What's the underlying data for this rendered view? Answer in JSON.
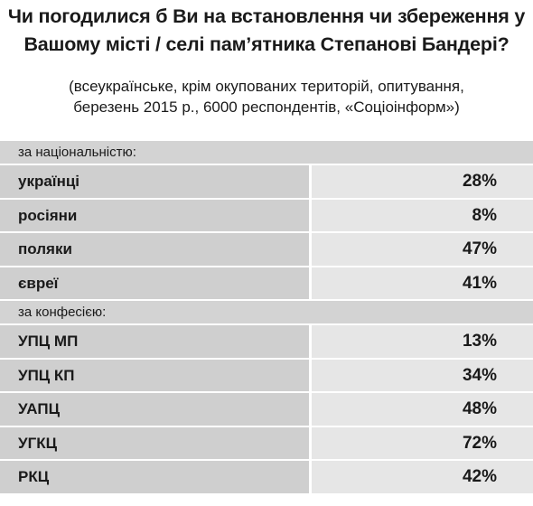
{
  "chart_data": {
    "type": "table",
    "title": "Чи погодилися б Ви на встановлення чи збереження у Вашому місті / селі пам’ятника Степанові Бандері?",
    "subtitle_line1": "(всеукраїнське, крім окупованих територій, опитування,",
    "subtitle_line2": "березень 2015 р., 6000 респондентів, «Соціоінформ»)",
    "groups": [
      {
        "header": "за національністю:",
        "rows": [
          {
            "label": "українці",
            "value": "28%"
          },
          {
            "label": "росіяни",
            "value": "8%"
          },
          {
            "label": "поляки",
            "value": "47%"
          },
          {
            "label": "євреї",
            "value": "41%"
          }
        ]
      },
      {
        "header": "за конфесією:",
        "rows": [
          {
            "label": "УПЦ МП",
            "value": "13%"
          },
          {
            "label": "УПЦ КП",
            "value": "34%"
          },
          {
            "label": "УАПЦ",
            "value": "48%"
          },
          {
            "label": "УГКЦ",
            "value": "72%"
          },
          {
            "label": "РКЦ",
            "value": "42%"
          }
        ]
      }
    ]
  }
}
